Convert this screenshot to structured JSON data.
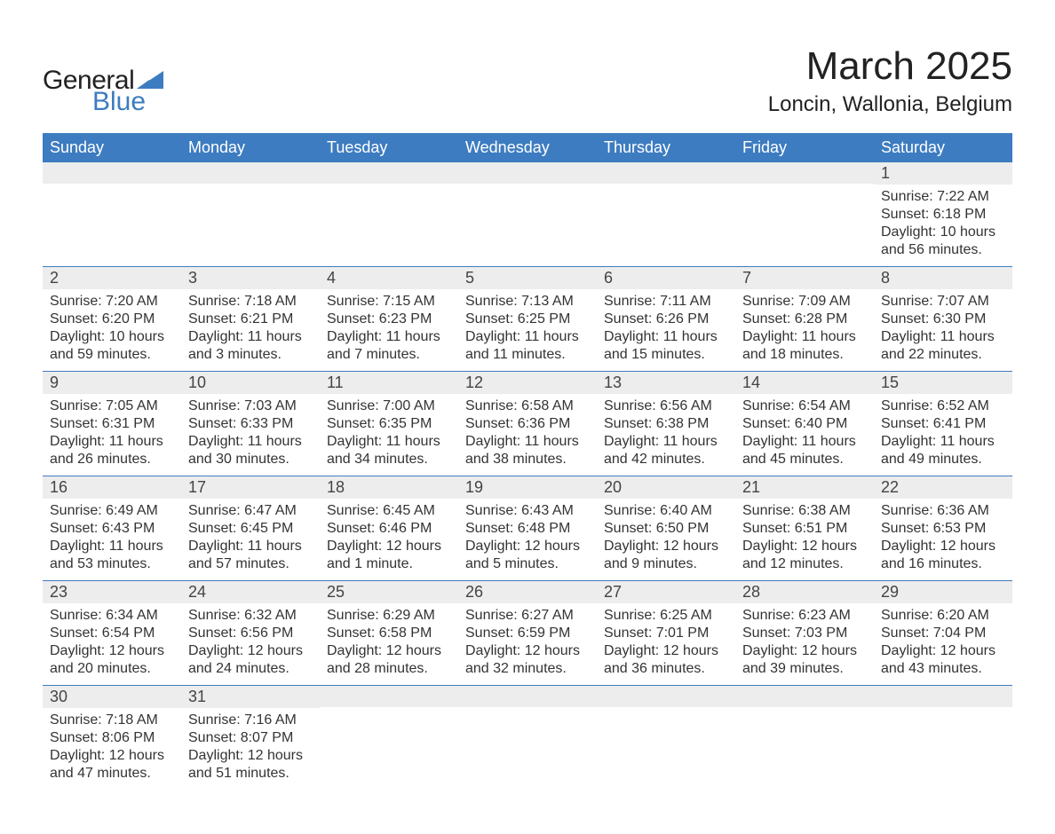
{
  "logo": {
    "text_general": "General",
    "text_blue": "Blue"
  },
  "header": {
    "month_title": "March 2025",
    "location": "Loncin, Wallonia, Belgium"
  },
  "colors": {
    "header_bg": "#3d7cc0",
    "header_text": "#ffffff",
    "daynum_bg": "#ededed",
    "row_divider": "#3d7cc0",
    "body_text": "#333333",
    "page_bg": "#ffffff"
  },
  "calendar": {
    "type": "table",
    "columns": [
      "Sunday",
      "Monday",
      "Tuesday",
      "Wednesday",
      "Thursday",
      "Friday",
      "Saturday"
    ],
    "weeks": [
      [
        {
          "day": "",
          "sunrise": "",
          "sunset": "",
          "daylight1": "",
          "daylight2": ""
        },
        {
          "day": "",
          "sunrise": "",
          "sunset": "",
          "daylight1": "",
          "daylight2": ""
        },
        {
          "day": "",
          "sunrise": "",
          "sunset": "",
          "daylight1": "",
          "daylight2": ""
        },
        {
          "day": "",
          "sunrise": "",
          "sunset": "",
          "daylight1": "",
          "daylight2": ""
        },
        {
          "day": "",
          "sunrise": "",
          "sunset": "",
          "daylight1": "",
          "daylight2": ""
        },
        {
          "day": "",
          "sunrise": "",
          "sunset": "",
          "daylight1": "",
          "daylight2": ""
        },
        {
          "day": "1",
          "sunrise": "Sunrise: 7:22 AM",
          "sunset": "Sunset: 6:18 PM",
          "daylight1": "Daylight: 10 hours",
          "daylight2": "and 56 minutes."
        }
      ],
      [
        {
          "day": "2",
          "sunrise": "Sunrise: 7:20 AM",
          "sunset": "Sunset: 6:20 PM",
          "daylight1": "Daylight: 10 hours",
          "daylight2": "and 59 minutes."
        },
        {
          "day": "3",
          "sunrise": "Sunrise: 7:18 AM",
          "sunset": "Sunset: 6:21 PM",
          "daylight1": "Daylight: 11 hours",
          "daylight2": "and 3 minutes."
        },
        {
          "day": "4",
          "sunrise": "Sunrise: 7:15 AM",
          "sunset": "Sunset: 6:23 PM",
          "daylight1": "Daylight: 11 hours",
          "daylight2": "and 7 minutes."
        },
        {
          "day": "5",
          "sunrise": "Sunrise: 7:13 AM",
          "sunset": "Sunset: 6:25 PM",
          "daylight1": "Daylight: 11 hours",
          "daylight2": "and 11 minutes."
        },
        {
          "day": "6",
          "sunrise": "Sunrise: 7:11 AM",
          "sunset": "Sunset: 6:26 PM",
          "daylight1": "Daylight: 11 hours",
          "daylight2": "and 15 minutes."
        },
        {
          "day": "7",
          "sunrise": "Sunrise: 7:09 AM",
          "sunset": "Sunset: 6:28 PM",
          "daylight1": "Daylight: 11 hours",
          "daylight2": "and 18 minutes."
        },
        {
          "day": "8",
          "sunrise": "Sunrise: 7:07 AM",
          "sunset": "Sunset: 6:30 PM",
          "daylight1": "Daylight: 11 hours",
          "daylight2": "and 22 minutes."
        }
      ],
      [
        {
          "day": "9",
          "sunrise": "Sunrise: 7:05 AM",
          "sunset": "Sunset: 6:31 PM",
          "daylight1": "Daylight: 11 hours",
          "daylight2": "and 26 minutes."
        },
        {
          "day": "10",
          "sunrise": "Sunrise: 7:03 AM",
          "sunset": "Sunset: 6:33 PM",
          "daylight1": "Daylight: 11 hours",
          "daylight2": "and 30 minutes."
        },
        {
          "day": "11",
          "sunrise": "Sunrise: 7:00 AM",
          "sunset": "Sunset: 6:35 PM",
          "daylight1": "Daylight: 11 hours",
          "daylight2": "and 34 minutes."
        },
        {
          "day": "12",
          "sunrise": "Sunrise: 6:58 AM",
          "sunset": "Sunset: 6:36 PM",
          "daylight1": "Daylight: 11 hours",
          "daylight2": "and 38 minutes."
        },
        {
          "day": "13",
          "sunrise": "Sunrise: 6:56 AM",
          "sunset": "Sunset: 6:38 PM",
          "daylight1": "Daylight: 11 hours",
          "daylight2": "and 42 minutes."
        },
        {
          "day": "14",
          "sunrise": "Sunrise: 6:54 AM",
          "sunset": "Sunset: 6:40 PM",
          "daylight1": "Daylight: 11 hours",
          "daylight2": "and 45 minutes."
        },
        {
          "day": "15",
          "sunrise": "Sunrise: 6:52 AM",
          "sunset": "Sunset: 6:41 PM",
          "daylight1": "Daylight: 11 hours",
          "daylight2": "and 49 minutes."
        }
      ],
      [
        {
          "day": "16",
          "sunrise": "Sunrise: 6:49 AM",
          "sunset": "Sunset: 6:43 PM",
          "daylight1": "Daylight: 11 hours",
          "daylight2": "and 53 minutes."
        },
        {
          "day": "17",
          "sunrise": "Sunrise: 6:47 AM",
          "sunset": "Sunset: 6:45 PM",
          "daylight1": "Daylight: 11 hours",
          "daylight2": "and 57 minutes."
        },
        {
          "day": "18",
          "sunrise": "Sunrise: 6:45 AM",
          "sunset": "Sunset: 6:46 PM",
          "daylight1": "Daylight: 12 hours",
          "daylight2": "and 1 minute."
        },
        {
          "day": "19",
          "sunrise": "Sunrise: 6:43 AM",
          "sunset": "Sunset: 6:48 PM",
          "daylight1": "Daylight: 12 hours",
          "daylight2": "and 5 minutes."
        },
        {
          "day": "20",
          "sunrise": "Sunrise: 6:40 AM",
          "sunset": "Sunset: 6:50 PM",
          "daylight1": "Daylight: 12 hours",
          "daylight2": "and 9 minutes."
        },
        {
          "day": "21",
          "sunrise": "Sunrise: 6:38 AM",
          "sunset": "Sunset: 6:51 PM",
          "daylight1": "Daylight: 12 hours",
          "daylight2": "and 12 minutes."
        },
        {
          "day": "22",
          "sunrise": "Sunrise: 6:36 AM",
          "sunset": "Sunset: 6:53 PM",
          "daylight1": "Daylight: 12 hours",
          "daylight2": "and 16 minutes."
        }
      ],
      [
        {
          "day": "23",
          "sunrise": "Sunrise: 6:34 AM",
          "sunset": "Sunset: 6:54 PM",
          "daylight1": "Daylight: 12 hours",
          "daylight2": "and 20 minutes."
        },
        {
          "day": "24",
          "sunrise": "Sunrise: 6:32 AM",
          "sunset": "Sunset: 6:56 PM",
          "daylight1": "Daylight: 12 hours",
          "daylight2": "and 24 minutes."
        },
        {
          "day": "25",
          "sunrise": "Sunrise: 6:29 AM",
          "sunset": "Sunset: 6:58 PM",
          "daylight1": "Daylight: 12 hours",
          "daylight2": "and 28 minutes."
        },
        {
          "day": "26",
          "sunrise": "Sunrise: 6:27 AM",
          "sunset": "Sunset: 6:59 PM",
          "daylight1": "Daylight: 12 hours",
          "daylight2": "and 32 minutes."
        },
        {
          "day": "27",
          "sunrise": "Sunrise: 6:25 AM",
          "sunset": "Sunset: 7:01 PM",
          "daylight1": "Daylight: 12 hours",
          "daylight2": "and 36 minutes."
        },
        {
          "day": "28",
          "sunrise": "Sunrise: 6:23 AM",
          "sunset": "Sunset: 7:03 PM",
          "daylight1": "Daylight: 12 hours",
          "daylight2": "and 39 minutes."
        },
        {
          "day": "29",
          "sunrise": "Sunrise: 6:20 AM",
          "sunset": "Sunset: 7:04 PM",
          "daylight1": "Daylight: 12 hours",
          "daylight2": "and 43 minutes."
        }
      ],
      [
        {
          "day": "30",
          "sunrise": "Sunrise: 7:18 AM",
          "sunset": "Sunset: 8:06 PM",
          "daylight1": "Daylight: 12 hours",
          "daylight2": "and 47 minutes."
        },
        {
          "day": "31",
          "sunrise": "Sunrise: 7:16 AM",
          "sunset": "Sunset: 8:07 PM",
          "daylight1": "Daylight: 12 hours",
          "daylight2": "and 51 minutes."
        },
        {
          "day": "",
          "sunrise": "",
          "sunset": "",
          "daylight1": "",
          "daylight2": ""
        },
        {
          "day": "",
          "sunrise": "",
          "sunset": "",
          "daylight1": "",
          "daylight2": ""
        },
        {
          "day": "",
          "sunrise": "",
          "sunset": "",
          "daylight1": "",
          "daylight2": ""
        },
        {
          "day": "",
          "sunrise": "",
          "sunset": "",
          "daylight1": "",
          "daylight2": ""
        },
        {
          "day": "",
          "sunrise": "",
          "sunset": "",
          "daylight1": "",
          "daylight2": ""
        }
      ]
    ]
  }
}
